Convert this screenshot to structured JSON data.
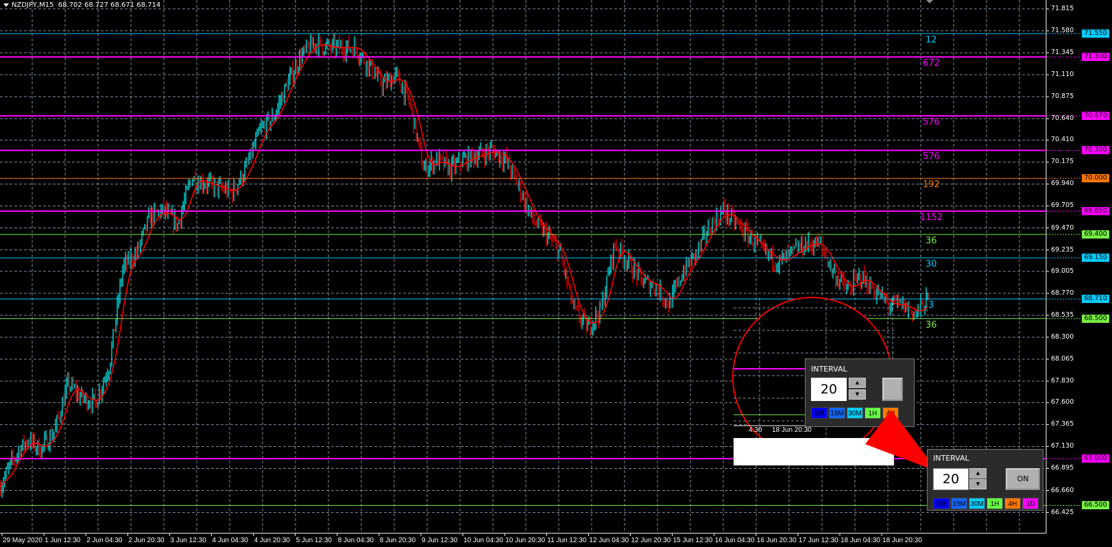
{
  "header": {
    "symbol_line": "NZDJPY,M15  68.702 68.727 68.671 68.714"
  },
  "colors": {
    "background": "#000000",
    "grid": "#8090a0",
    "bull_bar": "#00ffff",
    "bear_bar": "#ff0000",
    "ma_line": "#ff0000",
    "pointer": "#ff0000"
  },
  "price_axis": {
    "ticks": [
      "71.815",
      "71.580",
      "71.345",
      "71.110",
      "70.875",
      "70.640",
      "70.410",
      "70.175",
      "69.940",
      "69.705",
      "69.470",
      "69.235",
      "69.005",
      "68.770",
      "68.535",
      "68.300",
      "68.065",
      "67.830",
      "67.600",
      "67.365",
      "67.130",
      "66.895",
      "66.660",
      "66.425"
    ]
  },
  "time_axis": {
    "labels": [
      "29 May 2020",
      "1 Jun 12:30",
      "2 Jun 04:30",
      "2 Jun 20:30",
      "3 Jun 12:30",
      "4 Jun 04:30",
      "4 Jun 20:30",
      "5 Jun 12:30",
      "8 Jun 04:30",
      "8 Jun 20:30",
      "9 Jun 12:30",
      "10 Jun 04:30",
      "10 Jun 20:30",
      "11 Jun 12:30",
      "12 Jun 04:30",
      "12 Jun 20:30",
      "15 Jun 12:30",
      "16 Jun 04:30",
      "16 Jun 20:30",
      "17 Jun 12:30",
      "18 Jun 04:30",
      "18 Jun 20:30"
    ]
  },
  "levels": [
    {
      "price": "71.550",
      "count": "12",
      "color": "#00ccff",
      "thick": false
    },
    {
      "price": "71.300",
      "count": "672",
      "color": "#ff00ff",
      "thick": true
    },
    {
      "price": "70.670",
      "count": "576",
      "color": "#ff00ff",
      "thick": true
    },
    {
      "price": "70.300",
      "count": "576",
      "color": "#ff00ff",
      "thick": true
    },
    {
      "price": "70.000",
      "count": "192",
      "color": "#ff7700",
      "thick": false
    },
    {
      "price": "69.650",
      "count": "1152",
      "color": "#ff00ff",
      "thick": true
    },
    {
      "price": "69.400",
      "count": "36",
      "color": "#77ee44",
      "thick": false
    },
    {
      "price": "69.150",
      "count": "30",
      "color": "#00ccff",
      "thick": false
    },
    {
      "price": "68.710",
      "count": "3",
      "color": "#00ccff",
      "thick": false
    },
    {
      "price": "68.500",
      "count": "36",
      "color": "#77ee44",
      "thick": false
    },
    {
      "price": "67.000",
      "count": "",
      "color": "#ff00ff",
      "thick": true
    },
    {
      "price": "66.500",
      "count": "",
      "color": "#77ee44",
      "thick": false
    }
  ],
  "chart_data": {
    "type": "candlestick",
    "symbol": "NZDJPY",
    "timeframe": "M15",
    "ohlc_last": {
      "open": 68.702,
      "high": 68.727,
      "low": 68.671,
      "close": 68.714
    },
    "approx_close_path": [
      66.7,
      67.0,
      67.2,
      67.1,
      67.3,
      67.8,
      67.65,
      67.6,
      68.0,
      69.05,
      69.2,
      69.6,
      69.65,
      69.5,
      70.0,
      69.95,
      69.9,
      69.85,
      70.1,
      70.5,
      70.65,
      71.0,
      71.3,
      71.45,
      71.4,
      71.4,
      71.4,
      71.2,
      71.0,
      71.1,
      70.8,
      70.1,
      70.2,
      70.1,
      70.2,
      70.25,
      70.3,
      70.2,
      69.9,
      69.55,
      69.4,
      69.2,
      68.6,
      68.4,
      68.6,
      69.3,
      69.1,
      68.9,
      68.85,
      68.65,
      69.0,
      69.2,
      69.5,
      69.65,
      69.5,
      69.35,
      69.2,
      69.1,
      69.2,
      69.3,
      69.3,
      69.0,
      68.8,
      68.95,
      68.8,
      68.65,
      68.65,
      68.55,
      68.71
    ],
    "ylim": [
      66.19,
      71.9
    ]
  },
  "interval_panel": {
    "title": "INTERVAL",
    "value": "20",
    "up_label": "▲",
    "down_label": "▼",
    "toggle_label": "ON",
    "timeframes": [
      {
        "label": "5M",
        "color": "#0000ee"
      },
      {
        "label": "15M",
        "color": "#1166ff"
      },
      {
        "label": "30M",
        "color": "#00ccff"
      },
      {
        "label": "1H",
        "color": "#66ff44"
      },
      {
        "label": "4H",
        "color": "#ff7700"
      },
      {
        "label": "1D",
        "color": "#ff00ff"
      }
    ]
  },
  "magnifier": {
    "axis_text_left": "4:30",
    "axis_text_right": "18 Jun 20:30"
  }
}
